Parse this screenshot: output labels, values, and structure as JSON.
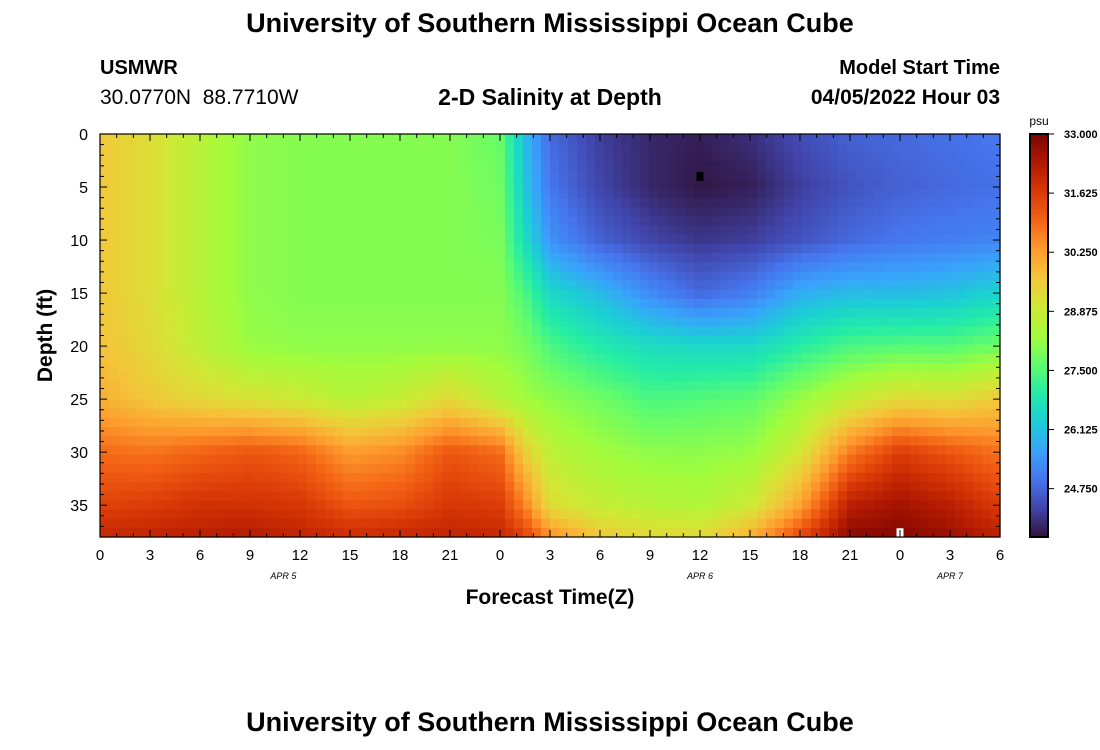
{
  "page": {
    "title": "University of Southern Mississippi Ocean Cube",
    "footer_title": "University of Southern Mississippi Ocean Cube",
    "station": "USMWR",
    "coordinates": "30.0770N  88.7710W",
    "subtitle": "2-D Salinity at Depth",
    "model_start_label": "Model Start Time",
    "model_start_value": "04/05/2022 Hour 03"
  },
  "colors": {
    "colormap": [
      "#30123b",
      "#4145ab",
      "#4675ed",
      "#39a2fc",
      "#1bcfd4",
      "#24eca6",
      "#61fc6c",
      "#a4fc3b",
      "#d1e834",
      "#f3c63a",
      "#fe9b2d",
      "#f36315",
      "#d93806",
      "#b11901",
      "#7a0402"
    ]
  },
  "chart_data": {
    "type": "heatmap",
    "title": "2-D Salinity at Depth",
    "xlabel": "Forecast Time(Z)",
    "ylabel": "Depth (ft)",
    "x_tick_labels": [
      "0",
      "3",
      "6",
      "9",
      "12",
      "15",
      "18",
      "21",
      "0",
      "3",
      "6",
      "9",
      "12",
      "15",
      "18",
      "21",
      "0",
      "3",
      "6"
    ],
    "x_hours": [
      0,
      3,
      6,
      9,
      12,
      15,
      18,
      21,
      24,
      27,
      30,
      33,
      36,
      39,
      42,
      45,
      48,
      51,
      54
    ],
    "date_labels": [
      {
        "text": "APR 5",
        "hour": 11
      },
      {
        "text": "APR 6",
        "hour": 36
      },
      {
        "text": "APR 7",
        "hour": 51
      }
    ],
    "xlim": [
      0,
      54
    ],
    "ylim": [
      0,
      38
    ],
    "y_inverted": true,
    "y_tick_labels": [
      "0",
      "5",
      "10",
      "15",
      "20",
      "25",
      "30",
      "35"
    ],
    "y_ticks": [
      0,
      5,
      10,
      15,
      20,
      25,
      30,
      35
    ],
    "colorbar": {
      "unit": "psu",
      "range": [
        23.625,
        33.0
      ],
      "tick_values": [
        33.0,
        31.625,
        30.25,
        28.875,
        27.5,
        26.125,
        24.75
      ],
      "tick_labels": [
        "33.000",
        "31.625",
        "30.250",
        "28.875",
        "27.500",
        "26.125",
        "24.750"
      ]
    },
    "grid": false,
    "legend": "right colorbar",
    "hours": [
      0,
      3,
      6,
      9,
      12,
      15,
      18,
      21,
      24,
      25.5,
      27,
      30,
      33,
      36,
      39,
      42,
      45,
      48,
      51,
      54
    ],
    "depths": [
      0,
      5,
      10,
      15,
      20,
      25,
      30,
      35,
      38
    ],
    "salinity": [
      [
        29.6,
        29.6,
        29.6,
        29.6,
        29.7,
        30.0,
        30.9,
        31.5,
        32.0
      ],
      [
        29.2,
        29.2,
        29.2,
        29.2,
        29.3,
        29.6,
        30.8,
        31.6,
        32.1
      ],
      [
        28.6,
        28.6,
        28.6,
        28.6,
        28.7,
        29.3,
        31.0,
        31.8,
        32.2
      ],
      [
        28.1,
        28.1,
        28.1,
        28.1,
        28.2,
        29.1,
        31.2,
        31.8,
        32.3
      ],
      [
        28.0,
        28.0,
        28.0,
        28.0,
        28.1,
        28.9,
        31.0,
        31.7,
        32.1
      ],
      [
        28.0,
        28.0,
        28.0,
        28.0,
        28.1,
        28.6,
        30.3,
        31.2,
        31.9
      ],
      [
        28.0,
        28.0,
        28.0,
        28.0,
        28.1,
        28.8,
        30.5,
        31.3,
        32.0
      ],
      [
        28.0,
        28.0,
        28.0,
        28.0,
        28.1,
        29.3,
        31.2,
        31.7,
        32.1
      ],
      [
        27.7,
        27.8,
        27.9,
        28.0,
        28.1,
        28.6,
        30.9,
        31.6,
        32.0
      ],
      [
        26.0,
        26.2,
        26.6,
        27.4,
        27.9,
        28.3,
        29.5,
        30.6,
        31.5
      ],
      [
        24.8,
        25.0,
        25.4,
        26.5,
        27.4,
        28.1,
        28.7,
        29.2,
        30.5
      ],
      [
        24.2,
        24.3,
        24.7,
        26.0,
        26.9,
        27.8,
        28.3,
        28.8,
        29.6
      ],
      [
        23.9,
        23.9,
        24.3,
        25.3,
        26.6,
        27.4,
        28.1,
        28.6,
        29.3
      ],
      [
        23.8,
        23.7,
        24.1,
        24.8,
        26.5,
        27.5,
        28.1,
        28.5,
        29.3
      ],
      [
        24.0,
        23.8,
        24.2,
        25.1,
        26.5,
        27.6,
        28.2,
        28.9,
        30.0
      ],
      [
        24.4,
        24.2,
        24.5,
        25.8,
        27.0,
        28.2,
        29.0,
        30.2,
        31.4
      ],
      [
        24.7,
        24.5,
        24.8,
        26.0,
        27.4,
        28.8,
        30.7,
        32.2,
        32.8
      ],
      [
        24.8,
        24.7,
        25.0,
        26.0,
        27.5,
        29.3,
        31.6,
        32.5,
        32.9
      ],
      [
        24.9,
        24.8,
        25.1,
        26.1,
        27.5,
        29.2,
        31.2,
        32.2,
        32.6
      ],
      [
        25.0,
        24.9,
        25.2,
        26.4,
        27.8,
        29.6,
        30.8,
        31.6,
        32.2
      ]
    ],
    "markers": [
      {
        "hour": 36,
        "depth": 4,
        "color": "#000000"
      },
      {
        "hour": 48,
        "depth": 37.6,
        "color": "#ffffff"
      }
    ]
  }
}
